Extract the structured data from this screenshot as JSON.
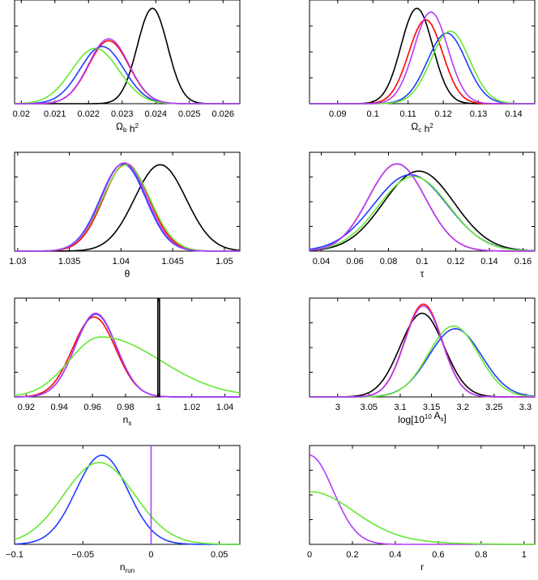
{
  "figure": {
    "title": "",
    "series_colors": {
      "black": "#000000",
      "red": "#ff0000",
      "blue": "#1f3cff",
      "green": "#66e832",
      "magenta": "#b23cff"
    }
  },
  "chart_data": [
    {
      "type": "line",
      "id": "omega_b",
      "xlabel": {
        "parts": [
          [
            "Ω",
            "n"
          ],
          [
            "b",
            "sub"
          ],
          [
            " h",
            "n"
          ],
          [
            "2",
            "sup"
          ]
        ]
      },
      "xlim": [
        0.0198,
        0.0265
      ],
      "ticks": [
        0.02,
        0.021,
        0.022,
        0.023,
        0.024,
        0.025,
        0.026
      ],
      "tick_labels": [
        "0.02",
        "0.021",
        "0.022",
        "0.023",
        "0.024",
        "0.025",
        "0.026"
      ],
      "series": [
        {
          "name": "black",
          "mean": 0.0239,
          "sd": 0.00045
        },
        {
          "name": "red",
          "mean": 0.0226,
          "sd": 0.0006
        },
        {
          "name": "blue",
          "mean": 0.0224,
          "sd": 0.00065
        },
        {
          "name": "green",
          "mean": 0.0222,
          "sd": 0.0007
        },
        {
          "name": "magenta",
          "mean": 0.0226,
          "sd": 0.0006
        }
      ],
      "peaks": {
        "black": 1.0,
        "red": 0.66,
        "blue": 0.6,
        "green": 0.58,
        "magenta": 0.68
      }
    },
    {
      "type": "line",
      "id": "omega_c",
      "xlabel": {
        "parts": [
          [
            "Ω",
            "n"
          ],
          [
            "c",
            "sub"
          ],
          [
            " h",
            "n"
          ],
          [
            "2",
            "sup"
          ]
        ]
      },
      "xlim": [
        0.082,
        0.146
      ],
      "ticks": [
        0.09,
        0.1,
        0.11,
        0.12,
        0.13,
        0.14
      ],
      "tick_labels": [
        "0.09",
        "0.1",
        "0.11",
        "0.12",
        "0.13",
        "0.14"
      ],
      "series": [
        {
          "name": "black",
          "mean": 0.1125,
          "sd": 0.0045
        },
        {
          "name": "red",
          "mean": 0.115,
          "sd": 0.0048
        },
        {
          "name": "blue",
          "mean": 0.121,
          "sd": 0.0055
        },
        {
          "name": "green",
          "mean": 0.122,
          "sd": 0.0055
        },
        {
          "name": "magenta",
          "mean": 0.1165,
          "sd": 0.0048
        }
      ],
      "peaks": {
        "black": 1.0,
        "red": 0.88,
        "blue": 0.74,
        "green": 0.76,
        "magenta": 0.96
      }
    },
    {
      "type": "line",
      "id": "theta",
      "xlabel": {
        "parts": [
          [
            "θ",
            "n"
          ]
        ]
      },
      "xlim": [
        1.0297,
        1.0515
      ],
      "ticks": [
        1.03,
        1.035,
        1.04,
        1.045,
        1.05
      ],
      "tick_labels": [
        "1.03",
        "1.035",
        "1.04",
        "1.045",
        "1.05"
      ],
      "series": [
        {
          "name": "black",
          "mean": 1.0438,
          "sd": 0.0025
        },
        {
          "name": "red",
          "mean": 1.0405,
          "sd": 0.0022
        },
        {
          "name": "blue",
          "mean": 1.0402,
          "sd": 0.0022
        },
        {
          "name": "green",
          "mean": 1.0405,
          "sd": 0.0023
        },
        {
          "name": "magenta",
          "mean": 1.0403,
          "sd": 0.0022
        }
      ],
      "peaks": {
        "black": 0.95,
        "red": 0.96,
        "blue": 0.96,
        "green": 0.95,
        "magenta": 0.97
      }
    },
    {
      "type": "line",
      "id": "tau",
      "xlabel": {
        "parts": [
          [
            "τ",
            "n"
          ]
        ]
      },
      "xlim": [
        0.033,
        0.167
      ],
      "ticks": [
        0.04,
        0.06,
        0.08,
        0.1,
        0.12,
        0.14,
        0.16
      ],
      "tick_labels": [
        "0.04",
        "0.06",
        "0.08",
        "0.1",
        "0.12",
        "0.14",
        "0.16"
      ],
      "series": [
        {
          "name": "black",
          "mean": 0.098,
          "sd": 0.021
        },
        {
          "name": "red",
          "mean": 0.085,
          "sd": 0.017
        },
        {
          "name": "blue",
          "mean": 0.093,
          "sd": 0.022
        },
        {
          "name": "green",
          "mean": 0.095,
          "sd": 0.021
        },
        {
          "name": "magenta",
          "mean": 0.085,
          "sd": 0.017
        }
      ],
      "peaks": {
        "black": 0.88,
        "red": 0.96,
        "blue": 0.84,
        "green": 0.82,
        "magenta": 0.96
      }
    },
    {
      "type": "line",
      "id": "n_s",
      "xlabel": {
        "parts": [
          [
            "n",
            "n"
          ],
          [
            "s",
            "sub"
          ]
        ]
      },
      "xlim": [
        0.913,
        1.049
      ],
      "ticks": [
        0.92,
        0.94,
        0.96,
        0.98,
        1.0,
        1.02,
        1.04
      ],
      "tick_labels": [
        "0.92",
        "0.94",
        "0.96",
        "0.98",
        "1",
        "1.02",
        "1.04"
      ],
      "series": [
        {
          "name": "red",
          "mean": 0.961,
          "sd": 0.013
        },
        {
          "name": "blue",
          "mean": 0.962,
          "sd": 0.0125
        },
        {
          "name": "magenta",
          "mean": 0.962,
          "sd": 0.0125
        },
        {
          "name": "green",
          "mean": 0.965,
          "sd": 0.019,
          "skew": 1.9
        }
      ],
      "vlines": [
        {
          "name": "black",
          "x": 0.9995
        },
        {
          "name": "black",
          "x": 1.0005
        }
      ],
      "peaks": {
        "red": 0.88,
        "blue": 0.91,
        "magenta": 0.92,
        "green": 0.66
      }
    },
    {
      "type": "line",
      "id": "log_as",
      "xlabel": {
        "parts": [
          [
            "log[10",
            "n"
          ],
          [
            "10",
            "sup"
          ],
          [
            " A",
            "n"
          ],
          [
            "s",
            "sub"
          ],
          [
            "]",
            "n"
          ]
        ]
      },
      "xlim": [
        2.955,
        3.315
      ],
      "ticks": [
        3.0,
        3.05,
        3.1,
        3.15,
        3.2,
        3.25,
        3.3
      ],
      "tick_labels": [
        "3",
        "3.05",
        "3.1",
        "3.15",
        "3.2",
        "3.25",
        "3.3"
      ],
      "series": [
        {
          "name": "black",
          "mean": 3.135,
          "sd": 0.035
        },
        {
          "name": "red",
          "mean": 3.137,
          "sd": 0.03
        },
        {
          "name": "blue",
          "mean": 3.188,
          "sd": 0.042
        },
        {
          "name": "green",
          "mean": 3.185,
          "sd": 0.04
        },
        {
          "name": "magenta",
          "mean": 3.137,
          "sd": 0.03
        }
      ],
      "peaks": {
        "black": 0.92,
        "red": 1.02,
        "blue": 0.75,
        "green": 0.78,
        "magenta": 1.0
      }
    },
    {
      "type": "line",
      "id": "n_run",
      "xlabel": {
        "parts": [
          [
            "n",
            "n"
          ],
          [
            "run",
            "sub"
          ]
        ]
      },
      "xlim": [
        -0.1,
        0.065
      ],
      "ticks": [
        -0.1,
        -0.05,
        0.0,
        0.05
      ],
      "tick_labels": [
        "−0.1",
        "−0.05",
        "0",
        "0.05"
      ],
      "series": [
        {
          "name": "blue",
          "mean": -0.036,
          "sd": 0.019
        },
        {
          "name": "green",
          "mean": -0.038,
          "sd": 0.026
        }
      ],
      "vlines": [
        {
          "name": "magenta",
          "x": 0.0
        }
      ],
      "peaks": {
        "blue": 0.98,
        "green": 0.9
      }
    },
    {
      "type": "line",
      "id": "r",
      "xlabel": {
        "parts": [
          [
            "r",
            "n"
          ]
        ]
      },
      "xlim": [
        0.0,
        1.05
      ],
      "ticks": [
        0,
        0.2,
        0.4,
        0.6,
        0.8,
        1.0
      ],
      "tick_labels": [
        "0",
        "0.2",
        "0.4",
        "0.6",
        "0.8",
        "1"
      ],
      "series": [
        {
          "name": "magenta",
          "mean": 0.0,
          "sd": 0.11,
          "half": true
        },
        {
          "name": "green",
          "mean": 0.0,
          "sd": 0.2,
          "half": true,
          "tail": 1.0
        }
      ],
      "peaks": {
        "magenta": 0.98,
        "green": 0.58
      }
    }
  ]
}
